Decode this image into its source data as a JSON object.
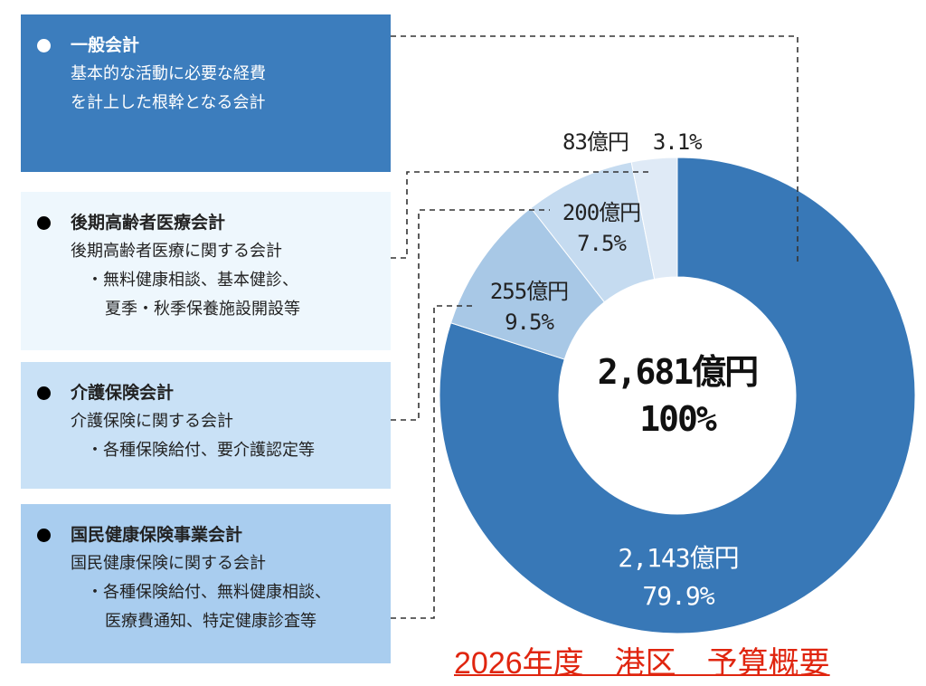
{
  "boxes": [
    {
      "title": "一般会計",
      "lines": [
        "基本的な活動に必要な経費",
        "を計上した根幹となる会計"
      ]
    },
    {
      "title": "後期高齢者医療会計",
      "lines": [
        "後期高齢者医療に関する会計",
        "・無料健康相談、基本健診、",
        "夏季・秋季保養施設開設等"
      ]
    },
    {
      "title": "介護保険会計",
      "lines": [
        "介護保険に関する会計",
        "・各種保険給付、要介護認定等"
      ]
    },
    {
      "title": "国民健康保険事業会計",
      "lines": [
        "国民健康保険に関する会計",
        "・各種保険給付、無料健康相談、",
        "医療費通知、特定健康診査等"
      ]
    }
  ],
  "chart_data": {
    "type": "pie",
    "variant": "donut",
    "total": {
      "amount_label": "2,681億円",
      "percent_label": "100%",
      "value": 2681
    },
    "slices": [
      {
        "name": "一般会計",
        "value": 2143,
        "percent": 79.9,
        "amount_label": "2,143億円",
        "percent_label": "79.9%",
        "color": "#3878b7"
      },
      {
        "name": "国民健康保険事業会計",
        "value": 255,
        "percent": 9.5,
        "amount_label": "255億円",
        "percent_label": "9.5%",
        "color": "#a8c8e6"
      },
      {
        "name": "介護保険会計",
        "value": 200,
        "percent": 7.5,
        "amount_label": "200億円",
        "percent_label": "7.5%",
        "color": "#c5dbf0"
      },
      {
        "name": "後期高齢者医療会計",
        "value": 83,
        "percent": 3.1,
        "amount_label": "83億円",
        "percent_label": "3.1%",
        "color": "#dfeaf6"
      }
    ],
    "start": "12 o'clock",
    "direction": "clockwise"
  },
  "footer": "2026年度　港区　予算概要"
}
